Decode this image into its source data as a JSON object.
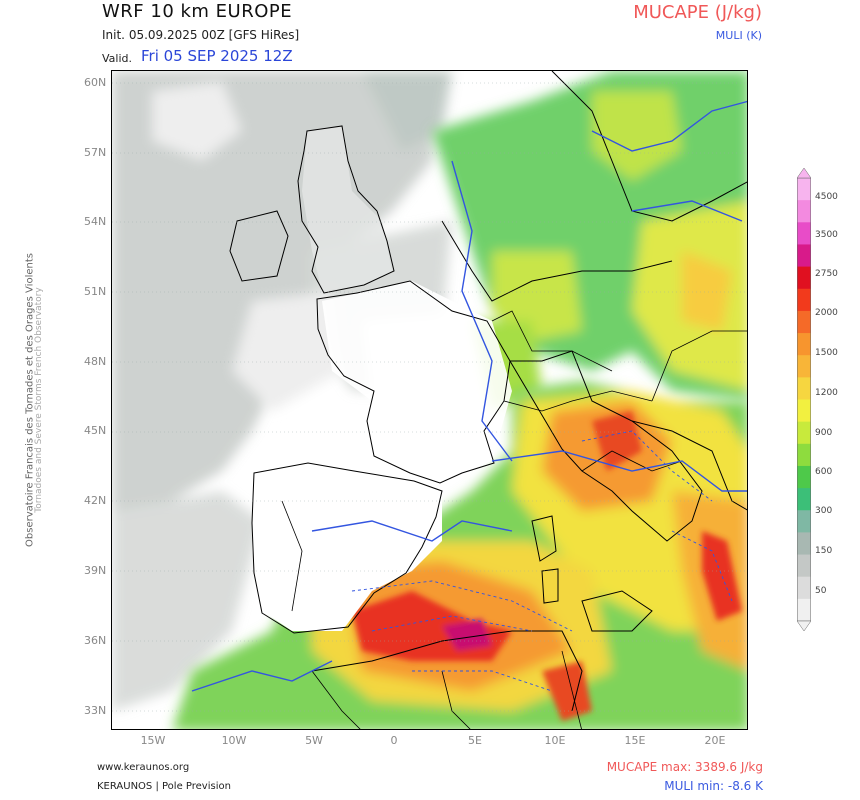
{
  "header": {
    "title": "WRF 10 km EUROPE",
    "init": "Init.   05.09.2025 00Z [GFS HiRes]",
    "valid_label": "Valid.",
    "valid_value": "Fri 05 SEP 2025 12Z",
    "variable_primary": "MUCAPE (J/kg)",
    "variable_secondary": "MULI (K)"
  },
  "axes": {
    "lat_labels": [
      "60N",
      "57N",
      "54N",
      "51N",
      "48N",
      "45N",
      "42N",
      "39N",
      "36N",
      "33N"
    ],
    "lon_labels": [
      "15W",
      "10W",
      "5W",
      "0",
      "5E",
      "10E",
      "15E",
      "20E"
    ]
  },
  "side_text": {
    "line1": "Observatoire Francais des Tornades et des Orages Violents",
    "line2": "Tornadoes and Severe Storms French Observatory"
  },
  "colorbar": {
    "labels": [
      "4500",
      "3500",
      "2750",
      "2000",
      "1500",
      "1200",
      "900",
      "600",
      "300",
      "150",
      "50"
    ],
    "colors": [
      "#f7b4ee",
      "#f38ae0",
      "#e84cc8",
      "#d81a8a",
      "#e01020",
      "#f23a1c",
      "#f56a28",
      "#f7952e",
      "#f8b538",
      "#f6d640",
      "#f2f040",
      "#c8ea3c",
      "#8edc3e",
      "#4ec94a",
      "#3cbf78",
      "#7fb8a4",
      "#a8b8b2",
      "#c4c8c6",
      "#dcdcdc",
      "#f0f0f0"
    ]
  },
  "footer": {
    "site": "www.keraunos.org",
    "org": "KERAUNOS | Pole Prevision",
    "stat_max": "MUCAPE max: 3389.6 J/kg",
    "stat_min": "MULI min: -8.6 K"
  }
}
